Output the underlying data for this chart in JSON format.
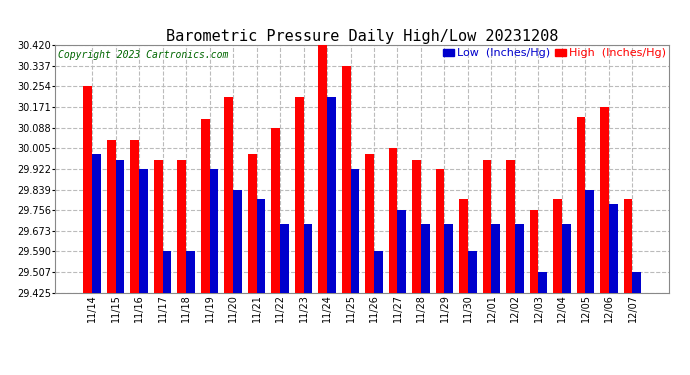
{
  "title": "Barometric Pressure Daily High/Low 20231208",
  "copyright": "Copyright 2023 Cartronics.com",
  "legend_low": "Low  (Inches/Hg)",
  "legend_high": "High  (Inches/Hg)",
  "dates": [
    "11/14",
    "11/15",
    "11/16",
    "11/17",
    "11/18",
    "11/19",
    "11/20",
    "11/21",
    "11/22",
    "11/23",
    "11/24",
    "11/25",
    "11/26",
    "11/27",
    "11/28",
    "11/29",
    "11/30",
    "12/01",
    "12/02",
    "12/03",
    "12/04",
    "12/05",
    "12/06",
    "12/07"
  ],
  "high_values": [
    30.254,
    30.039,
    30.039,
    29.956,
    29.956,
    30.122,
    30.21,
    29.98,
    30.088,
    30.21,
    30.42,
    30.337,
    29.98,
    30.005,
    29.956,
    29.922,
    29.8,
    29.956,
    29.956,
    29.756,
    29.8,
    30.13,
    30.171,
    29.8
  ],
  "low_values": [
    29.98,
    29.956,
    29.922,
    29.59,
    29.59,
    29.922,
    29.839,
    29.8,
    29.7,
    29.7,
    30.21,
    29.922,
    29.59,
    29.756,
    29.7,
    29.7,
    29.59,
    29.7,
    29.7,
    29.507,
    29.7,
    29.839,
    29.78,
    29.507
  ],
  "ylim": [
    29.425,
    30.42
  ],
  "yticks": [
    29.425,
    29.507,
    29.59,
    29.673,
    29.756,
    29.839,
    29.922,
    30.005,
    30.088,
    30.171,
    30.254,
    30.337,
    30.42
  ],
  "bar_width": 0.38,
  "high_color": "#ff0000",
  "low_color": "#0000cc",
  "bg_color": "#ffffff",
  "grid_color": "#bbbbbb",
  "title_fontsize": 11,
  "tick_fontsize": 7,
  "legend_fontsize": 8,
  "copyright_fontsize": 7
}
